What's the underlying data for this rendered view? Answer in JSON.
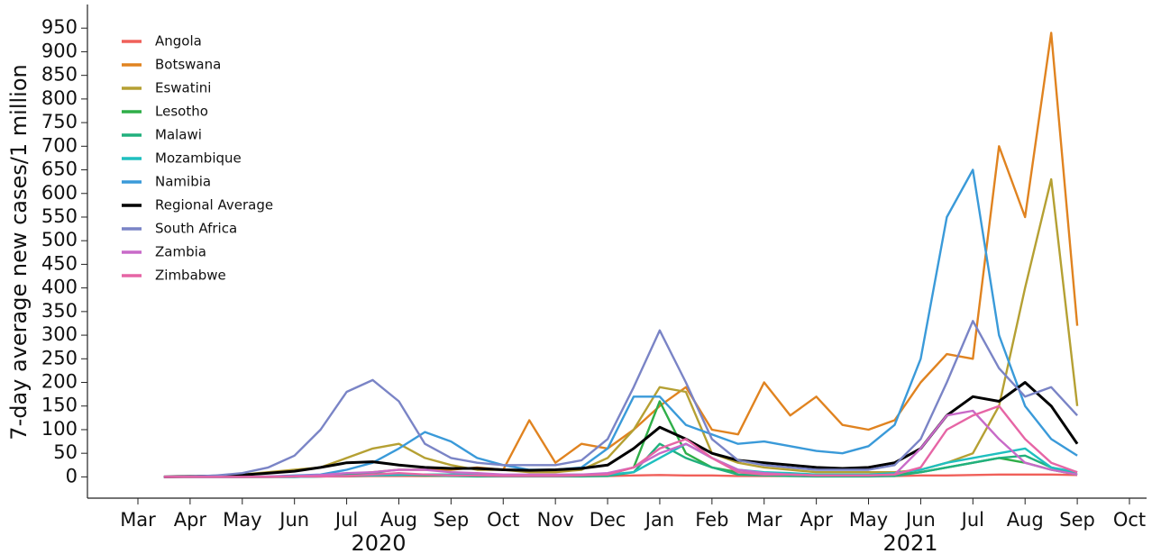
{
  "chart_data": {
    "type": "line",
    "y_label": "7-day average new cases/1 million",
    "categories": [
      "Mar",
      null,
      "Apr",
      null,
      "May",
      null,
      "Jun",
      null,
      "Jul",
      null,
      "Aug",
      null,
      "Sep",
      null,
      "Oct",
      null,
      "Nov",
      null,
      "Dec",
      null,
      "Jan",
      null,
      "Feb",
      null,
      "Mar",
      null,
      "Apr",
      null,
      "May",
      null,
      "Jun",
      null,
      "Jul",
      null,
      "Aug",
      null,
      "Sep",
      null,
      "Oct"
    ],
    "year_labels": [
      "2020",
      "2021"
    ],
    "ylim": [
      -45,
      1000
    ],
    "yticks": [
      0,
      50,
      100,
      150,
      200,
      250,
      300,
      350,
      400,
      450,
      500,
      550,
      600,
      650,
      700,
      750,
      800,
      850,
      900,
      950
    ],
    "grid": false,
    "legend": "upper-left",
    "series": [
      {
        "name": "Angola",
        "color": "#f0605a",
        "values": [
          null,
          0,
          0,
          0,
          0,
          0,
          0,
          1,
          1,
          2,
          2,
          2,
          2,
          2,
          2,
          2,
          2,
          2,
          2,
          3,
          4,
          3,
          3,
          2,
          2,
          2,
          2,
          2,
          2,
          2,
          3,
          3,
          4,
          5,
          5,
          5,
          4,
          null,
          null
        ]
      },
      {
        "name": "Botswana",
        "color": "#e08320",
        "values": [
          null,
          0,
          0,
          0,
          0,
          1,
          2,
          2,
          5,
          10,
          15,
          15,
          15,
          20,
          15,
          120,
          30,
          70,
          60,
          100,
          150,
          190,
          100,
          90,
          200,
          130,
          170,
          110,
          100,
          120,
          200,
          260,
          250,
          700,
          550,
          940,
          320,
          null,
          null
        ]
      },
      {
        "name": "Eswatini",
        "color": "#b5a033",
        "values": [
          null,
          0,
          0,
          2,
          5,
          10,
          15,
          20,
          40,
          60,
          70,
          40,
          25,
          15,
          15,
          10,
          10,
          15,
          40,
          100,
          190,
          180,
          50,
          30,
          20,
          15,
          10,
          10,
          10,
          10,
          15,
          30,
          50,
          150,
          400,
          630,
          150,
          null,
          null
        ]
      },
      {
        "name": "Lesotho",
        "color": "#2fae48",
        "values": [
          null,
          0,
          0,
          0,
          0,
          0,
          0,
          1,
          3,
          5,
          5,
          5,
          5,
          3,
          3,
          2,
          2,
          3,
          5,
          20,
          160,
          50,
          20,
          10,
          5,
          5,
          3,
          3,
          3,
          5,
          10,
          20,
          30,
          40,
          30,
          15,
          5,
          null,
          null
        ]
      },
      {
        "name": "Malawi",
        "color": "#21b07d",
        "values": [
          null,
          0,
          0,
          0,
          0,
          0,
          1,
          2,
          5,
          8,
          5,
          3,
          2,
          1,
          1,
          1,
          1,
          1,
          2,
          10,
          70,
          40,
          20,
          5,
          3,
          2,
          1,
          1,
          1,
          2,
          10,
          20,
          30,
          40,
          45,
          20,
          5,
          null,
          null
        ]
      },
      {
        "name": "Mozambique",
        "color": "#1fbfbf",
        "values": [
          null,
          0,
          0,
          0,
          0,
          0,
          0,
          1,
          2,
          3,
          4,
          5,
          5,
          5,
          4,
          4,
          4,
          5,
          5,
          10,
          40,
          70,
          40,
          15,
          10,
          8,
          5,
          5,
          5,
          8,
          15,
          30,
          40,
          50,
          60,
          20,
          10,
          null,
          null
        ]
      },
      {
        "name": "Namibia",
        "color": "#3a9ad9",
        "values": [
          null,
          0,
          0,
          0,
          0,
          1,
          3,
          5,
          15,
          30,
          60,
          95,
          75,
          40,
          25,
          15,
          15,
          20,
          60,
          170,
          170,
          110,
          90,
          70,
          75,
          65,
          55,
          50,
          65,
          110,
          250,
          550,
          650,
          300,
          150,
          80,
          45,
          null,
          null
        ]
      },
      {
        "name": "Regional Average",
        "color": "#000000",
        "values": [
          null,
          0,
          1,
          2,
          4,
          8,
          12,
          20,
          30,
          32,
          25,
          20,
          18,
          18,
          15,
          14,
          15,
          18,
          25,
          60,
          105,
          80,
          50,
          35,
          30,
          25,
          20,
          18,
          20,
          30,
          60,
          130,
          170,
          160,
          200,
          150,
          70,
          null,
          null
        ]
      },
      {
        "name": "South Africa",
        "color": "#7a84c6",
        "values": [
          null,
          0,
          1,
          3,
          8,
          20,
          45,
          100,
          180,
          205,
          160,
          70,
          40,
          30,
          25,
          25,
          25,
          35,
          80,
          190,
          310,
          200,
          80,
          35,
          25,
          20,
          15,
          15,
          15,
          25,
          80,
          200,
          330,
          230,
          170,
          190,
          130,
          null,
          null
        ]
      },
      {
        "name": "Zambia",
        "color": "#c86ac8",
        "values": [
          null,
          0,
          0,
          0,
          0,
          1,
          2,
          4,
          8,
          10,
          15,
          15,
          10,
          8,
          5,
          5,
          5,
          5,
          8,
          20,
          50,
          70,
          40,
          15,
          8,
          5,
          3,
          3,
          3,
          5,
          60,
          130,
          140,
          80,
          30,
          15,
          5,
          null,
          null
        ]
      },
      {
        "name": "Zimbabwe",
        "color": "#e665a5",
        "values": [
          null,
          0,
          0,
          0,
          0,
          0,
          1,
          1,
          2,
          5,
          8,
          5,
          3,
          3,
          2,
          2,
          2,
          3,
          5,
          20,
          60,
          80,
          40,
          10,
          5,
          5,
          3,
          3,
          3,
          5,
          20,
          100,
          130,
          150,
          80,
          30,
          10,
          null,
          null
        ]
      }
    ]
  }
}
